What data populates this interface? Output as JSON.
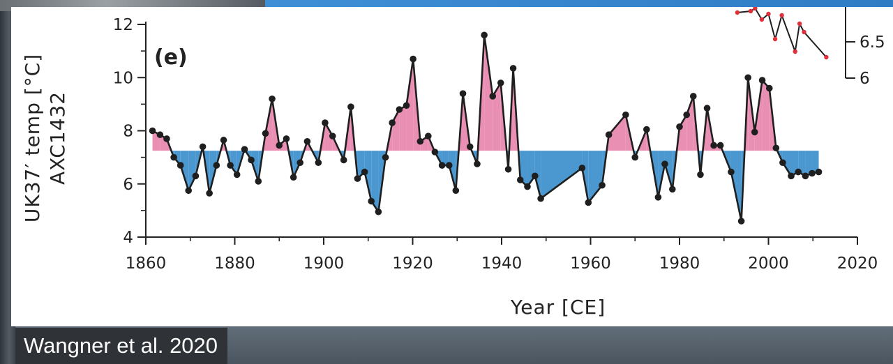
{
  "caption": "Wangner et al. 2020",
  "colors": {
    "above": "#ea8fb4",
    "below": "#4b97cf",
    "line": "#1f1f1f",
    "inset_points": "#e0303a"
  },
  "chart_data": {
    "type": "line",
    "panel_label": "(e)",
    "title": "",
    "xlabel": "Year [CE]",
    "ylabel": [
      "UK37′ temp [°C]",
      "AXC1432"
    ],
    "xlim": [
      1860,
      2020
    ],
    "ylim": [
      4,
      12
    ],
    "xticks": [
      1860,
      1880,
      1900,
      1920,
      1940,
      1960,
      1980,
      2000,
      2020
    ],
    "yticks": [
      4,
      6,
      8,
      10,
      12
    ],
    "baseline": 7.25,
    "fill": "above baseline pink, below baseline blue",
    "series": [
      {
        "x": [
          1861.5,
          1863.2,
          1864.7,
          1866.3,
          1867.8,
          1869.6,
          1871.2,
          1872.8,
          1874.3,
          1875.9,
          1877.5,
          1879.0,
          1880.5,
          1882.2,
          1883.7,
          1885.3,
          1886.9,
          1888.4,
          1890.0,
          1891.6,
          1893.2,
          1894.7,
          1896.3,
          1898.8,
          1900.3,
          1902.0,
          1904.5,
          1906.1,
          1907.6,
          1909.2,
          1910.7,
          1912.3,
          1913.9,
          1915.4,
          1917.0,
          1918.6,
          1920.1,
          1921.7,
          1923.5,
          1925.0,
          1926.6,
          1928.2,
          1929.7,
          1931.3,
          1932.9,
          1934.5,
          1936.1,
          1938.0,
          1939.8,
          1941.5,
          1942.6,
          1944.2,
          1945.8,
          1947.5,
          1948.8,
          1958.1,
          1959.5,
          1962.6,
          1964.1,
          1967.9,
          1970.0,
          1972.6,
          1975.2,
          1976.7,
          1978.4,
          1980.0,
          1981.6,
          1983.1,
          1984.7,
          1986.2,
          1987.7,
          1989.2,
          1991.6,
          1993.9,
          1995.4,
          1996.9,
          1998.6,
          2000.2,
          2001.7,
          2003.2,
          2005.1,
          2006.7,
          2008.3,
          2009.8,
          2011.3
        ],
        "y": [
          8.0,
          7.85,
          7.7,
          7.0,
          6.7,
          5.75,
          6.3,
          7.4,
          5.65,
          6.7,
          7.65,
          6.7,
          6.35,
          7.3,
          6.9,
          6.1,
          7.9,
          9.2,
          7.45,
          7.7,
          6.25,
          6.8,
          7.6,
          6.8,
          8.3,
          7.8,
          6.9,
          8.9,
          6.2,
          6.45,
          5.35,
          4.95,
          7.0,
          8.3,
          8.8,
          8.95,
          10.7,
          7.6,
          7.8,
          7.2,
          6.7,
          6.7,
          5.75,
          9.4,
          7.4,
          6.75,
          11.6,
          9.3,
          9.8,
          6.55,
          10.35,
          6.15,
          5.9,
          6.3,
          5.45,
          6.6,
          5.3,
          5.95,
          7.85,
          8.6,
          7.0,
          8.05,
          5.5,
          6.75,
          5.8,
          8.15,
          8.6,
          9.3,
          6.35,
          8.85,
          7.45,
          7.45,
          6.45,
          4.6,
          10.0,
          7.95,
          9.9,
          9.6,
          7.35,
          6.8,
          6.3,
          6.45,
          6.3,
          6.4,
          6.45
        ]
      }
    ],
    "inset": {
      "yticks": [
        "6.5",
        "6"
      ],
      "points_x": [
        1993,
        1996,
        1997,
        1998.5,
        2000,
        2001.5,
        2003,
        2006,
        2007,
        2008,
        2013
      ]
    }
  }
}
